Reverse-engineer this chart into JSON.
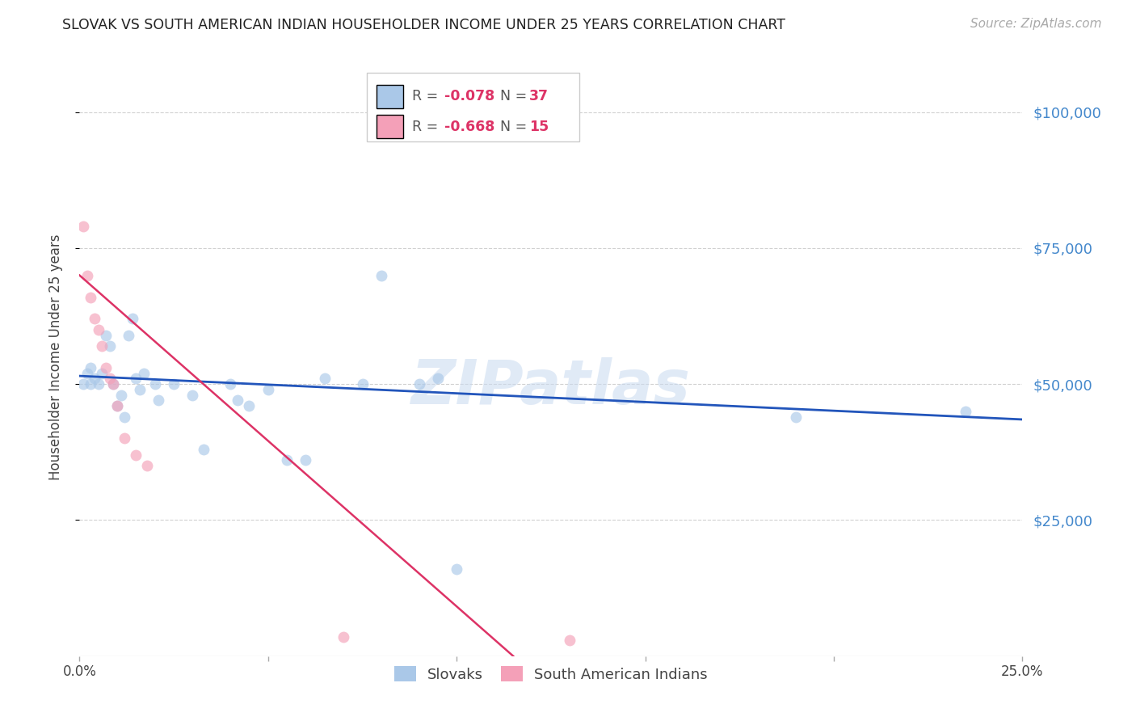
{
  "title": "SLOVAK VS SOUTH AMERICAN INDIAN HOUSEHOLDER INCOME UNDER 25 YEARS CORRELATION CHART",
  "source": "Source: ZipAtlas.com",
  "ylabel": "Householder Income Under 25 years",
  "ytick_labels": [
    "$25,000",
    "$50,000",
    "$75,000",
    "$100,000"
  ],
  "ytick_values": [
    25000,
    50000,
    75000,
    100000
  ],
  "ymin": 0,
  "ymax": 110000,
  "xmin": 0.0,
  "xmax": 0.25,
  "watermark": "ZIPatlas",
  "slovak_scatter_x": [
    0.001,
    0.002,
    0.003,
    0.003,
    0.004,
    0.005,
    0.006,
    0.007,
    0.008,
    0.009,
    0.01,
    0.011,
    0.012,
    0.013,
    0.014,
    0.015,
    0.016,
    0.017,
    0.02,
    0.021,
    0.025,
    0.03,
    0.033,
    0.04,
    0.042,
    0.045,
    0.05,
    0.055,
    0.06,
    0.065,
    0.075,
    0.08,
    0.09,
    0.095,
    0.1,
    0.19,
    0.235
  ],
  "slovak_scatter_y": [
    50000,
    52000,
    50000,
    53000,
    51000,
    50000,
    52000,
    59000,
    57000,
    50000,
    46000,
    48000,
    44000,
    59000,
    62000,
    51000,
    49000,
    52000,
    50000,
    47000,
    50000,
    48000,
    38000,
    50000,
    47000,
    46000,
    49000,
    36000,
    36000,
    51000,
    50000,
    70000,
    50000,
    51000,
    16000,
    44000,
    45000
  ],
  "sai_scatter_x": [
    0.001,
    0.002,
    0.003,
    0.004,
    0.005,
    0.006,
    0.007,
    0.008,
    0.009,
    0.01,
    0.012,
    0.015,
    0.018,
    0.07,
    0.13
  ],
  "sai_scatter_y": [
    79000,
    70000,
    66000,
    62000,
    60000,
    57000,
    53000,
    51000,
    50000,
    46000,
    40000,
    37000,
    35000,
    3500,
    3000
  ],
  "slovak_line_x": [
    0.0,
    0.25
  ],
  "slovak_line_y": [
    51500,
    43500
  ],
  "sai_line_x": [
    0.0,
    0.115
  ],
  "sai_line_y": [
    70000,
    0
  ],
  "scatter_color_slovak": "#aac8e8",
  "scatter_color_sai": "#f4a0b8",
  "line_color_slovak": "#2255bb",
  "line_color_sai": "#dd3366",
  "background_color": "#ffffff",
  "grid_color": "#cccccc",
  "title_color": "#222222",
  "tick_label_color_y": "#4488cc",
  "scatter_size": 100,
  "scatter_alpha": 0.65,
  "legend_R_slovak": "-0.078",
  "legend_N_slovak": "37",
  "legend_R_sai": "-0.668",
  "legend_N_sai": "15"
}
